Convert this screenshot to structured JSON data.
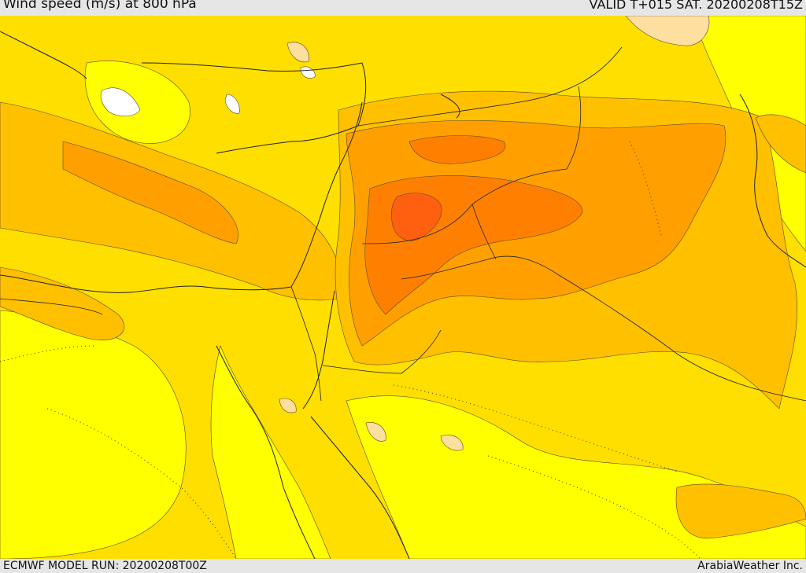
{
  "header": {
    "title": "Wind speed (m/s) at 800 hPa",
    "valid": "VALID T+015 SAT. 20200208T15Z"
  },
  "footer": {
    "model_run": "ECMWF MODEL RUN: 20200208T00Z",
    "credit": "ArabiaWeather Inc."
  },
  "colors": {
    "speed_lowest": "#ffffff",
    "speed_low": "#ffff00",
    "speed_mid_low": "#ffdf00",
    "speed_mid": "#ffc000",
    "speed_mid_high": "#ffa000",
    "speed_high": "#ff8000",
    "speed_highest": "#ff6010",
    "calm_patch": "#ffdfa0",
    "contour_line": "#5a4a2a",
    "border_line": "#222222"
  }
}
